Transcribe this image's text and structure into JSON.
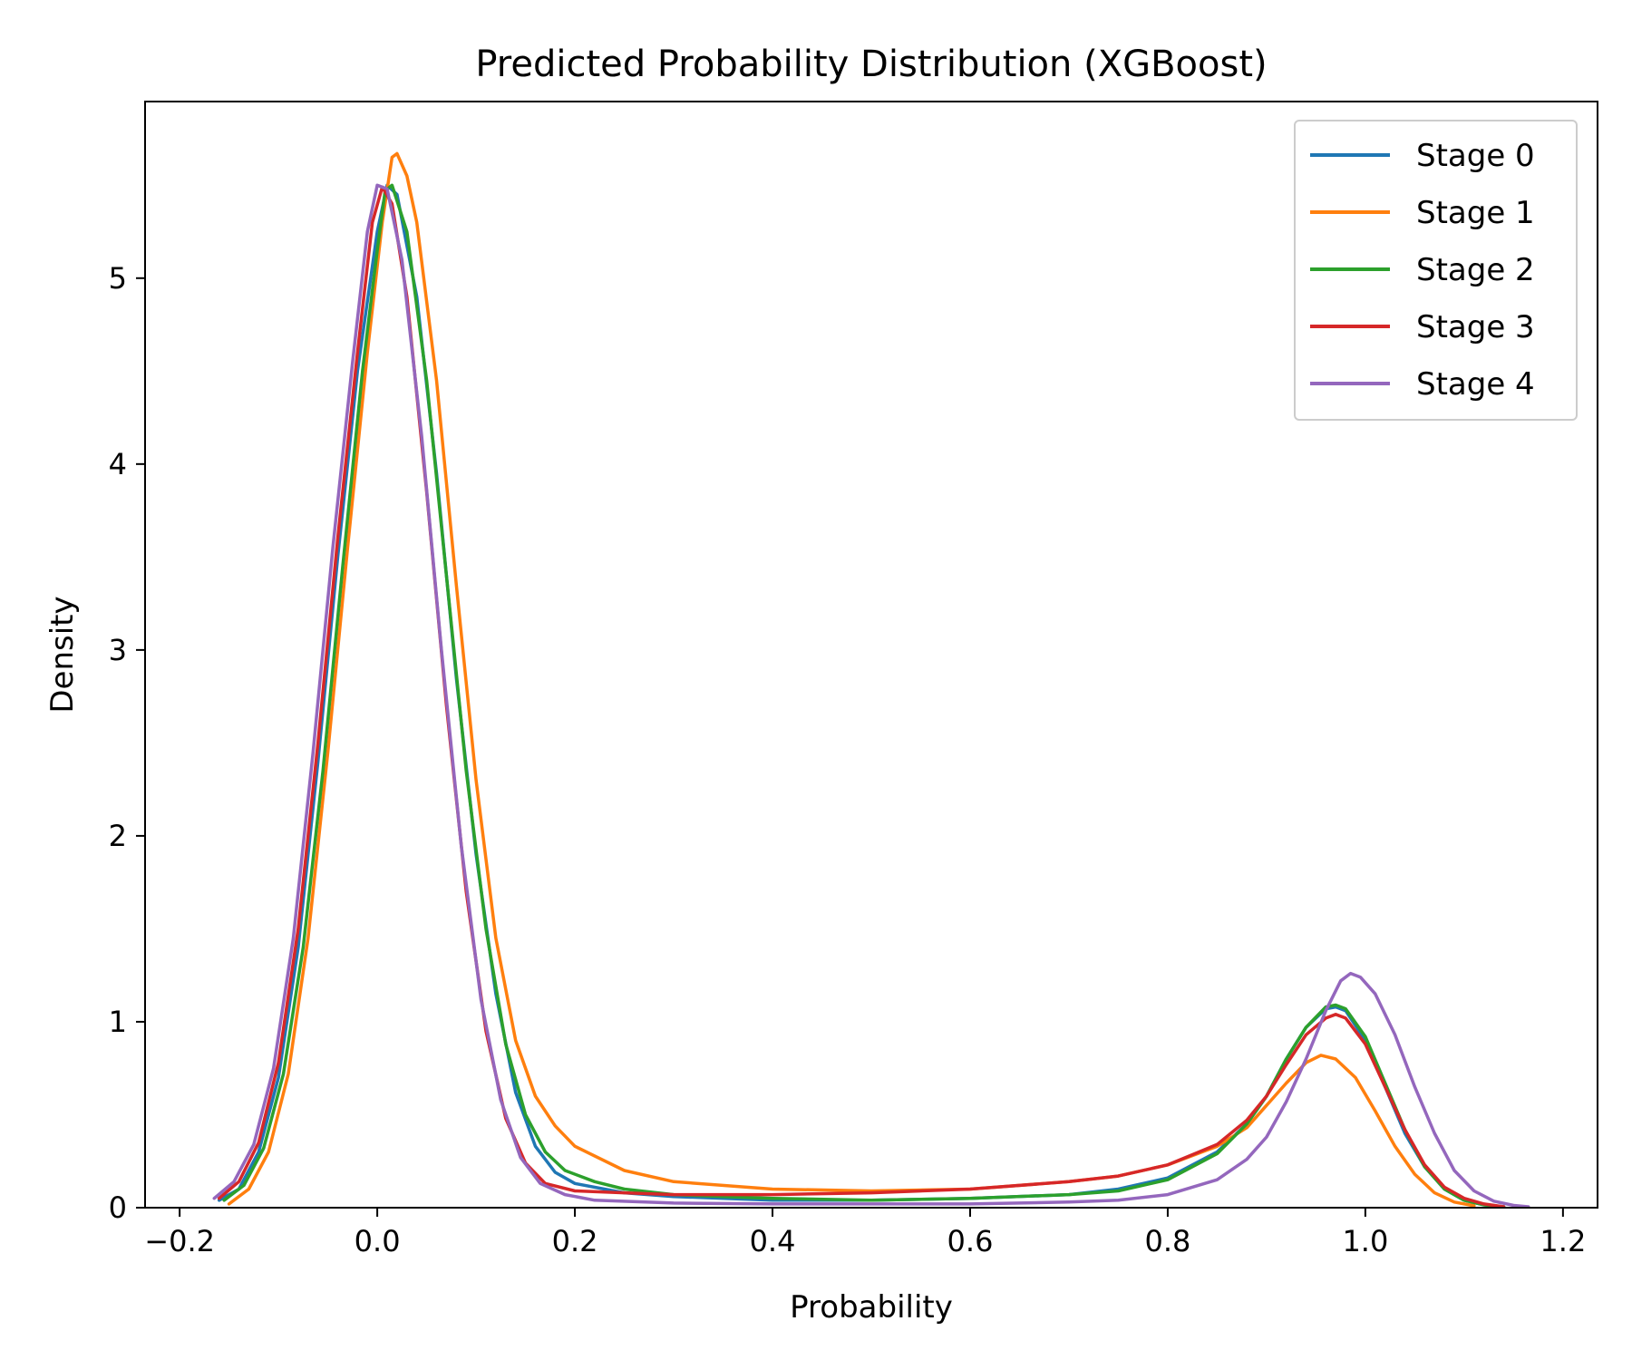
{
  "chart_data": {
    "type": "line",
    "title": "Predicted Probability Distribution (XGBoost)",
    "xlabel": "Probability",
    "ylabel": "Density",
    "xlim": [
      -0.235,
      1.235
    ],
    "ylim": [
      0,
      5.95
    ],
    "xticks": [
      -0.2,
      0.0,
      0.2,
      0.4,
      0.6,
      0.8,
      1.0,
      1.2
    ],
    "xtick_labels": [
      "−0.2",
      "0.0",
      "0.2",
      "0.4",
      "0.6",
      "0.8",
      "1.0",
      "1.2"
    ],
    "yticks": [
      0,
      1,
      2,
      3,
      4,
      5
    ],
    "ytick_labels": [
      "0",
      "1",
      "2",
      "3",
      "4",
      "5"
    ],
    "grid": false,
    "legend_position": "top-right",
    "series": [
      {
        "name": "Stage 0",
        "color": "#1f77b4",
        "points": [
          [
            -0.16,
            0.04
          ],
          [
            -0.14,
            0.1
          ],
          [
            -0.12,
            0.3
          ],
          [
            -0.1,
            0.7
          ],
          [
            -0.08,
            1.4
          ],
          [
            -0.06,
            2.4
          ],
          [
            -0.04,
            3.5
          ],
          [
            -0.02,
            4.5
          ],
          [
            0.0,
            5.25
          ],
          [
            0.01,
            5.5
          ],
          [
            0.02,
            5.45
          ],
          [
            0.04,
            4.9
          ],
          [
            0.06,
            3.95
          ],
          [
            0.08,
            2.85
          ],
          [
            0.1,
            1.9
          ],
          [
            0.12,
            1.15
          ],
          [
            0.14,
            0.62
          ],
          [
            0.16,
            0.33
          ],
          [
            0.18,
            0.19
          ],
          [
            0.2,
            0.13
          ],
          [
            0.25,
            0.08
          ],
          [
            0.3,
            0.06
          ],
          [
            0.4,
            0.04
          ],
          [
            0.5,
            0.04
          ],
          [
            0.6,
            0.05
          ],
          [
            0.7,
            0.07
          ],
          [
            0.75,
            0.1
          ],
          [
            0.8,
            0.16
          ],
          [
            0.85,
            0.3
          ],
          [
            0.88,
            0.45
          ],
          [
            0.9,
            0.6
          ],
          [
            0.92,
            0.8
          ],
          [
            0.94,
            0.97
          ],
          [
            0.96,
            1.07
          ],
          [
            0.97,
            1.08
          ],
          [
            0.98,
            1.06
          ],
          [
            1.0,
            0.9
          ],
          [
            1.02,
            0.65
          ],
          [
            1.04,
            0.4
          ],
          [
            1.06,
            0.22
          ],
          [
            1.08,
            0.1
          ],
          [
            1.1,
            0.04
          ],
          [
            1.12,
            0.015
          ],
          [
            1.14,
            0.005
          ]
        ]
      },
      {
        "name": "Stage 1",
        "color": "#ff7f0e",
        "points": [
          [
            -0.15,
            0.02
          ],
          [
            -0.13,
            0.1
          ],
          [
            -0.11,
            0.3
          ],
          [
            -0.09,
            0.72
          ],
          [
            -0.07,
            1.45
          ],
          [
            -0.05,
            2.45
          ],
          [
            -0.03,
            3.55
          ],
          [
            -0.01,
            4.6
          ],
          [
            0.005,
            5.3
          ],
          [
            0.015,
            5.65
          ],
          [
            0.02,
            5.67
          ],
          [
            0.03,
            5.55
          ],
          [
            0.04,
            5.3
          ],
          [
            0.06,
            4.45
          ],
          [
            0.08,
            3.35
          ],
          [
            0.1,
            2.3
          ],
          [
            0.12,
            1.45
          ],
          [
            0.14,
            0.9
          ],
          [
            0.16,
            0.6
          ],
          [
            0.18,
            0.44
          ],
          [
            0.2,
            0.33
          ],
          [
            0.25,
            0.2
          ],
          [
            0.3,
            0.14
          ],
          [
            0.4,
            0.1
          ],
          [
            0.5,
            0.09
          ],
          [
            0.6,
            0.1
          ],
          [
            0.7,
            0.14
          ],
          [
            0.75,
            0.17
          ],
          [
            0.8,
            0.23
          ],
          [
            0.85,
            0.33
          ],
          [
            0.88,
            0.43
          ],
          [
            0.9,
            0.55
          ],
          [
            0.92,
            0.67
          ],
          [
            0.94,
            0.78
          ],
          [
            0.955,
            0.82
          ],
          [
            0.97,
            0.8
          ],
          [
            0.99,
            0.7
          ],
          [
            1.01,
            0.52
          ],
          [
            1.03,
            0.33
          ],
          [
            1.05,
            0.18
          ],
          [
            1.07,
            0.08
          ],
          [
            1.09,
            0.03
          ],
          [
            1.11,
            0.01
          ]
        ]
      },
      {
        "name": "Stage 2",
        "color": "#2ca02c",
        "points": [
          [
            -0.155,
            0.04
          ],
          [
            -0.135,
            0.12
          ],
          [
            -0.115,
            0.32
          ],
          [
            -0.095,
            0.72
          ],
          [
            -0.075,
            1.4
          ],
          [
            -0.055,
            2.35
          ],
          [
            -0.035,
            3.45
          ],
          [
            -0.015,
            4.5
          ],
          [
            0.0,
            5.15
          ],
          [
            0.008,
            5.47
          ],
          [
            0.015,
            5.5
          ],
          [
            0.03,
            5.25
          ],
          [
            0.05,
            4.45
          ],
          [
            0.07,
            3.4
          ],
          [
            0.09,
            2.35
          ],
          [
            0.11,
            1.5
          ],
          [
            0.13,
            0.88
          ],
          [
            0.15,
            0.5
          ],
          [
            0.17,
            0.3
          ],
          [
            0.19,
            0.2
          ],
          [
            0.22,
            0.14
          ],
          [
            0.25,
            0.1
          ],
          [
            0.3,
            0.07
          ],
          [
            0.4,
            0.05
          ],
          [
            0.5,
            0.04
          ],
          [
            0.6,
            0.05
          ],
          [
            0.7,
            0.07
          ],
          [
            0.75,
            0.09
          ],
          [
            0.8,
            0.15
          ],
          [
            0.85,
            0.29
          ],
          [
            0.88,
            0.45
          ],
          [
            0.9,
            0.6
          ],
          [
            0.92,
            0.8
          ],
          [
            0.94,
            0.97
          ],
          [
            0.96,
            1.08
          ],
          [
            0.97,
            1.09
          ],
          [
            0.98,
            1.07
          ],
          [
            1.0,
            0.92
          ],
          [
            1.02,
            0.67
          ],
          [
            1.04,
            0.42
          ],
          [
            1.06,
            0.22
          ],
          [
            1.08,
            0.1
          ],
          [
            1.1,
            0.04
          ],
          [
            1.12,
            0.015
          ],
          [
            1.14,
            0.005
          ]
        ]
      },
      {
        "name": "Stage 3",
        "color": "#d62728",
        "points": [
          [
            -0.16,
            0.05
          ],
          [
            -0.14,
            0.14
          ],
          [
            -0.12,
            0.35
          ],
          [
            -0.1,
            0.78
          ],
          [
            -0.08,
            1.5
          ],
          [
            -0.06,
            2.5
          ],
          [
            -0.04,
            3.6
          ],
          [
            -0.02,
            4.6
          ],
          [
            -0.005,
            5.3
          ],
          [
            0.005,
            5.49
          ],
          [
            0.015,
            5.4
          ],
          [
            0.03,
            4.9
          ],
          [
            0.05,
            3.85
          ],
          [
            0.07,
            2.7
          ],
          [
            0.09,
            1.7
          ],
          [
            0.11,
            0.95
          ],
          [
            0.13,
            0.48
          ],
          [
            0.15,
            0.24
          ],
          [
            0.17,
            0.13
          ],
          [
            0.2,
            0.09
          ],
          [
            0.25,
            0.08
          ],
          [
            0.3,
            0.07
          ],
          [
            0.4,
            0.07
          ],
          [
            0.5,
            0.08
          ],
          [
            0.6,
            0.1
          ],
          [
            0.7,
            0.14
          ],
          [
            0.75,
            0.17
          ],
          [
            0.8,
            0.23
          ],
          [
            0.85,
            0.34
          ],
          [
            0.88,
            0.47
          ],
          [
            0.9,
            0.6
          ],
          [
            0.92,
            0.77
          ],
          [
            0.94,
            0.93
          ],
          [
            0.96,
            1.02
          ],
          [
            0.97,
            1.04
          ],
          [
            0.98,
            1.02
          ],
          [
            1.0,
            0.88
          ],
          [
            1.02,
            0.65
          ],
          [
            1.04,
            0.42
          ],
          [
            1.06,
            0.23
          ],
          [
            1.08,
            0.11
          ],
          [
            1.1,
            0.05
          ],
          [
            1.12,
            0.02
          ],
          [
            1.14,
            0.005
          ]
        ]
      },
      {
        "name": "Stage 4",
        "color": "#9467bd",
        "points": [
          [
            -0.165,
            0.05
          ],
          [
            -0.145,
            0.14
          ],
          [
            -0.125,
            0.34
          ],
          [
            -0.105,
            0.75
          ],
          [
            -0.085,
            1.45
          ],
          [
            -0.065,
            2.45
          ],
          [
            -0.045,
            3.55
          ],
          [
            -0.025,
            4.55
          ],
          [
            -0.01,
            5.25
          ],
          [
            0.0,
            5.5
          ],
          [
            0.01,
            5.48
          ],
          [
            0.025,
            5.1
          ],
          [
            0.045,
            4.15
          ],
          [
            0.065,
            3.0
          ],
          [
            0.085,
            1.95
          ],
          [
            0.105,
            1.12
          ],
          [
            0.125,
            0.58
          ],
          [
            0.145,
            0.27
          ],
          [
            0.165,
            0.13
          ],
          [
            0.19,
            0.07
          ],
          [
            0.22,
            0.04
          ],
          [
            0.3,
            0.025
          ],
          [
            0.4,
            0.02
          ],
          [
            0.5,
            0.02
          ],
          [
            0.6,
            0.02
          ],
          [
            0.7,
            0.03
          ],
          [
            0.75,
            0.04
          ],
          [
            0.8,
            0.07
          ],
          [
            0.85,
            0.15
          ],
          [
            0.88,
            0.26
          ],
          [
            0.9,
            0.38
          ],
          [
            0.92,
            0.57
          ],
          [
            0.94,
            0.8
          ],
          [
            0.96,
            1.06
          ],
          [
            0.975,
            1.22
          ],
          [
            0.985,
            1.26
          ],
          [
            0.995,
            1.24
          ],
          [
            1.01,
            1.15
          ],
          [
            1.03,
            0.93
          ],
          [
            1.05,
            0.65
          ],
          [
            1.07,
            0.4
          ],
          [
            1.09,
            0.2
          ],
          [
            1.11,
            0.09
          ],
          [
            1.13,
            0.035
          ],
          [
            1.15,
            0.012
          ],
          [
            1.165,
            0.005
          ]
        ]
      }
    ]
  }
}
